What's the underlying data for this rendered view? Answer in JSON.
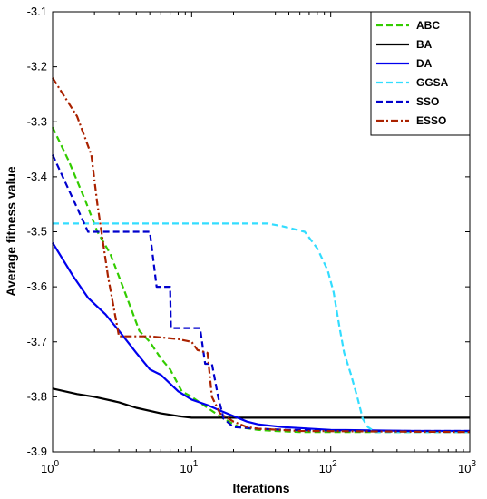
{
  "chart_data": {
    "type": "line",
    "title": "",
    "xlabel": "Iterations",
    "ylabel": "Average fitness value",
    "xscale": "log",
    "xlim": [
      1,
      1000
    ],
    "ylim": [
      -3.9,
      -3.1
    ],
    "x_ticks": [
      {
        "value": 1,
        "base": "10",
        "exp": "0"
      },
      {
        "value": 10,
        "base": "10",
        "exp": "1"
      },
      {
        "value": 100,
        "base": "10",
        "exp": "2"
      },
      {
        "value": 1000,
        "base": "10",
        "exp": "3"
      }
    ],
    "y_ticks": [
      -3.1,
      -3.2,
      -3.3,
      -3.4,
      -3.5,
      -3.6,
      -3.7,
      -3.8,
      -3.9
    ],
    "y_tick_labels": [
      "-3.1",
      "-3.2",
      "-3.3",
      "-3.4",
      "-3.5",
      "-3.6",
      "-3.7",
      "-3.8",
      "-3.9"
    ],
    "grid": false,
    "legend_position": "top-right",
    "series": [
      {
        "name": "ABC",
        "color": "#33cc00",
        "dash": "dashed",
        "points": [
          [
            1,
            -3.31
          ],
          [
            1.3,
            -3.37
          ],
          [
            1.7,
            -3.44
          ],
          [
            2.1,
            -3.5
          ],
          [
            2.6,
            -3.54
          ],
          [
            3.2,
            -3.6
          ],
          [
            3.8,
            -3.65
          ],
          [
            4.2,
            -3.68
          ],
          [
            5,
            -3.7
          ],
          [
            6,
            -3.73
          ],
          [
            7,
            -3.75
          ],
          [
            8.5,
            -3.79
          ],
          [
            10,
            -3.8
          ],
          [
            13,
            -3.82
          ],
          [
            17,
            -3.84
          ],
          [
            22,
            -3.855
          ],
          [
            30,
            -3.86
          ],
          [
            40,
            -3.862
          ],
          [
            60,
            -3.864
          ],
          [
            100,
            -3.864
          ],
          [
            1000,
            -3.864
          ]
        ]
      },
      {
        "name": "BA",
        "color": "#000000",
        "dash": "solid",
        "points": [
          [
            1,
            -3.785
          ],
          [
            1.5,
            -3.795
          ],
          [
            2,
            -3.8
          ],
          [
            3,
            -3.81
          ],
          [
            4,
            -3.82
          ],
          [
            6,
            -3.83
          ],
          [
            8,
            -3.835
          ],
          [
            10,
            -3.838
          ],
          [
            15,
            -3.838
          ],
          [
            1000,
            -3.838
          ]
        ]
      },
      {
        "name": "DA",
        "color": "#0000ee",
        "dash": "solid",
        "points": [
          [
            1,
            -3.52
          ],
          [
            1.4,
            -3.58
          ],
          [
            1.8,
            -3.62
          ],
          [
            2.4,
            -3.65
          ],
          [
            3,
            -3.68
          ],
          [
            4,
            -3.72
          ],
          [
            5,
            -3.75
          ],
          [
            6,
            -3.76
          ],
          [
            8,
            -3.79
          ],
          [
            10,
            -3.805
          ],
          [
            13,
            -3.815
          ],
          [
            16,
            -3.825
          ],
          [
            20,
            -3.835
          ],
          [
            25,
            -3.845
          ],
          [
            30,
            -3.85
          ],
          [
            45,
            -3.855
          ],
          [
            100,
            -3.86
          ],
          [
            400,
            -3.862
          ],
          [
            1000,
            -3.862
          ]
        ]
      },
      {
        "name": "GGSA",
        "color": "#33ddff",
        "dash": "dashed",
        "points": [
          [
            1,
            -3.485
          ],
          [
            10,
            -3.485
          ],
          [
            35,
            -3.485
          ],
          [
            45,
            -3.49
          ],
          [
            65,
            -3.5
          ],
          [
            80,
            -3.53
          ],
          [
            95,
            -3.57
          ],
          [
            105,
            -3.61
          ],
          [
            115,
            -3.67
          ],
          [
            125,
            -3.72
          ],
          [
            140,
            -3.76
          ],
          [
            155,
            -3.8
          ],
          [
            170,
            -3.84
          ],
          [
            185,
            -3.855
          ],
          [
            210,
            -3.864
          ],
          [
            1000,
            -3.864
          ]
        ]
      },
      {
        "name": "SSO",
        "color": "#0000cc",
        "dash": "dashed",
        "points": [
          [
            1,
            -3.36
          ],
          [
            1.4,
            -3.44
          ],
          [
            1.8,
            -3.5
          ],
          [
            3,
            -3.5
          ],
          [
            5,
            -3.5
          ],
          [
            5.6,
            -3.6
          ],
          [
            7,
            -3.6
          ],
          [
            7.1,
            -3.675
          ],
          [
            11.5,
            -3.675
          ],
          [
            12.5,
            -3.74
          ],
          [
            14,
            -3.74
          ],
          [
            15.5,
            -3.8
          ],
          [
            17,
            -3.84
          ],
          [
            20,
            -3.855
          ],
          [
            30,
            -3.858
          ],
          [
            50,
            -3.86
          ],
          [
            200,
            -3.862
          ],
          [
            1000,
            -3.862
          ]
        ]
      },
      {
        "name": "ESSO",
        "color": "#aa2200",
        "dash": "dashdot",
        "points": [
          [
            1,
            -3.22
          ],
          [
            1.5,
            -3.29
          ],
          [
            1.9,
            -3.36
          ],
          [
            2.1,
            -3.45
          ],
          [
            2.5,
            -3.58
          ],
          [
            3,
            -3.69
          ],
          [
            5,
            -3.69
          ],
          [
            8,
            -3.695
          ],
          [
            10,
            -3.7
          ],
          [
            11,
            -3.715
          ],
          [
            13,
            -3.72
          ],
          [
            14,
            -3.8
          ],
          [
            16,
            -3.83
          ],
          [
            20,
            -3.845
          ],
          [
            25,
            -3.855
          ],
          [
            30,
            -3.858
          ],
          [
            60,
            -3.862
          ],
          [
            1000,
            -3.864
          ]
        ]
      }
    ]
  }
}
